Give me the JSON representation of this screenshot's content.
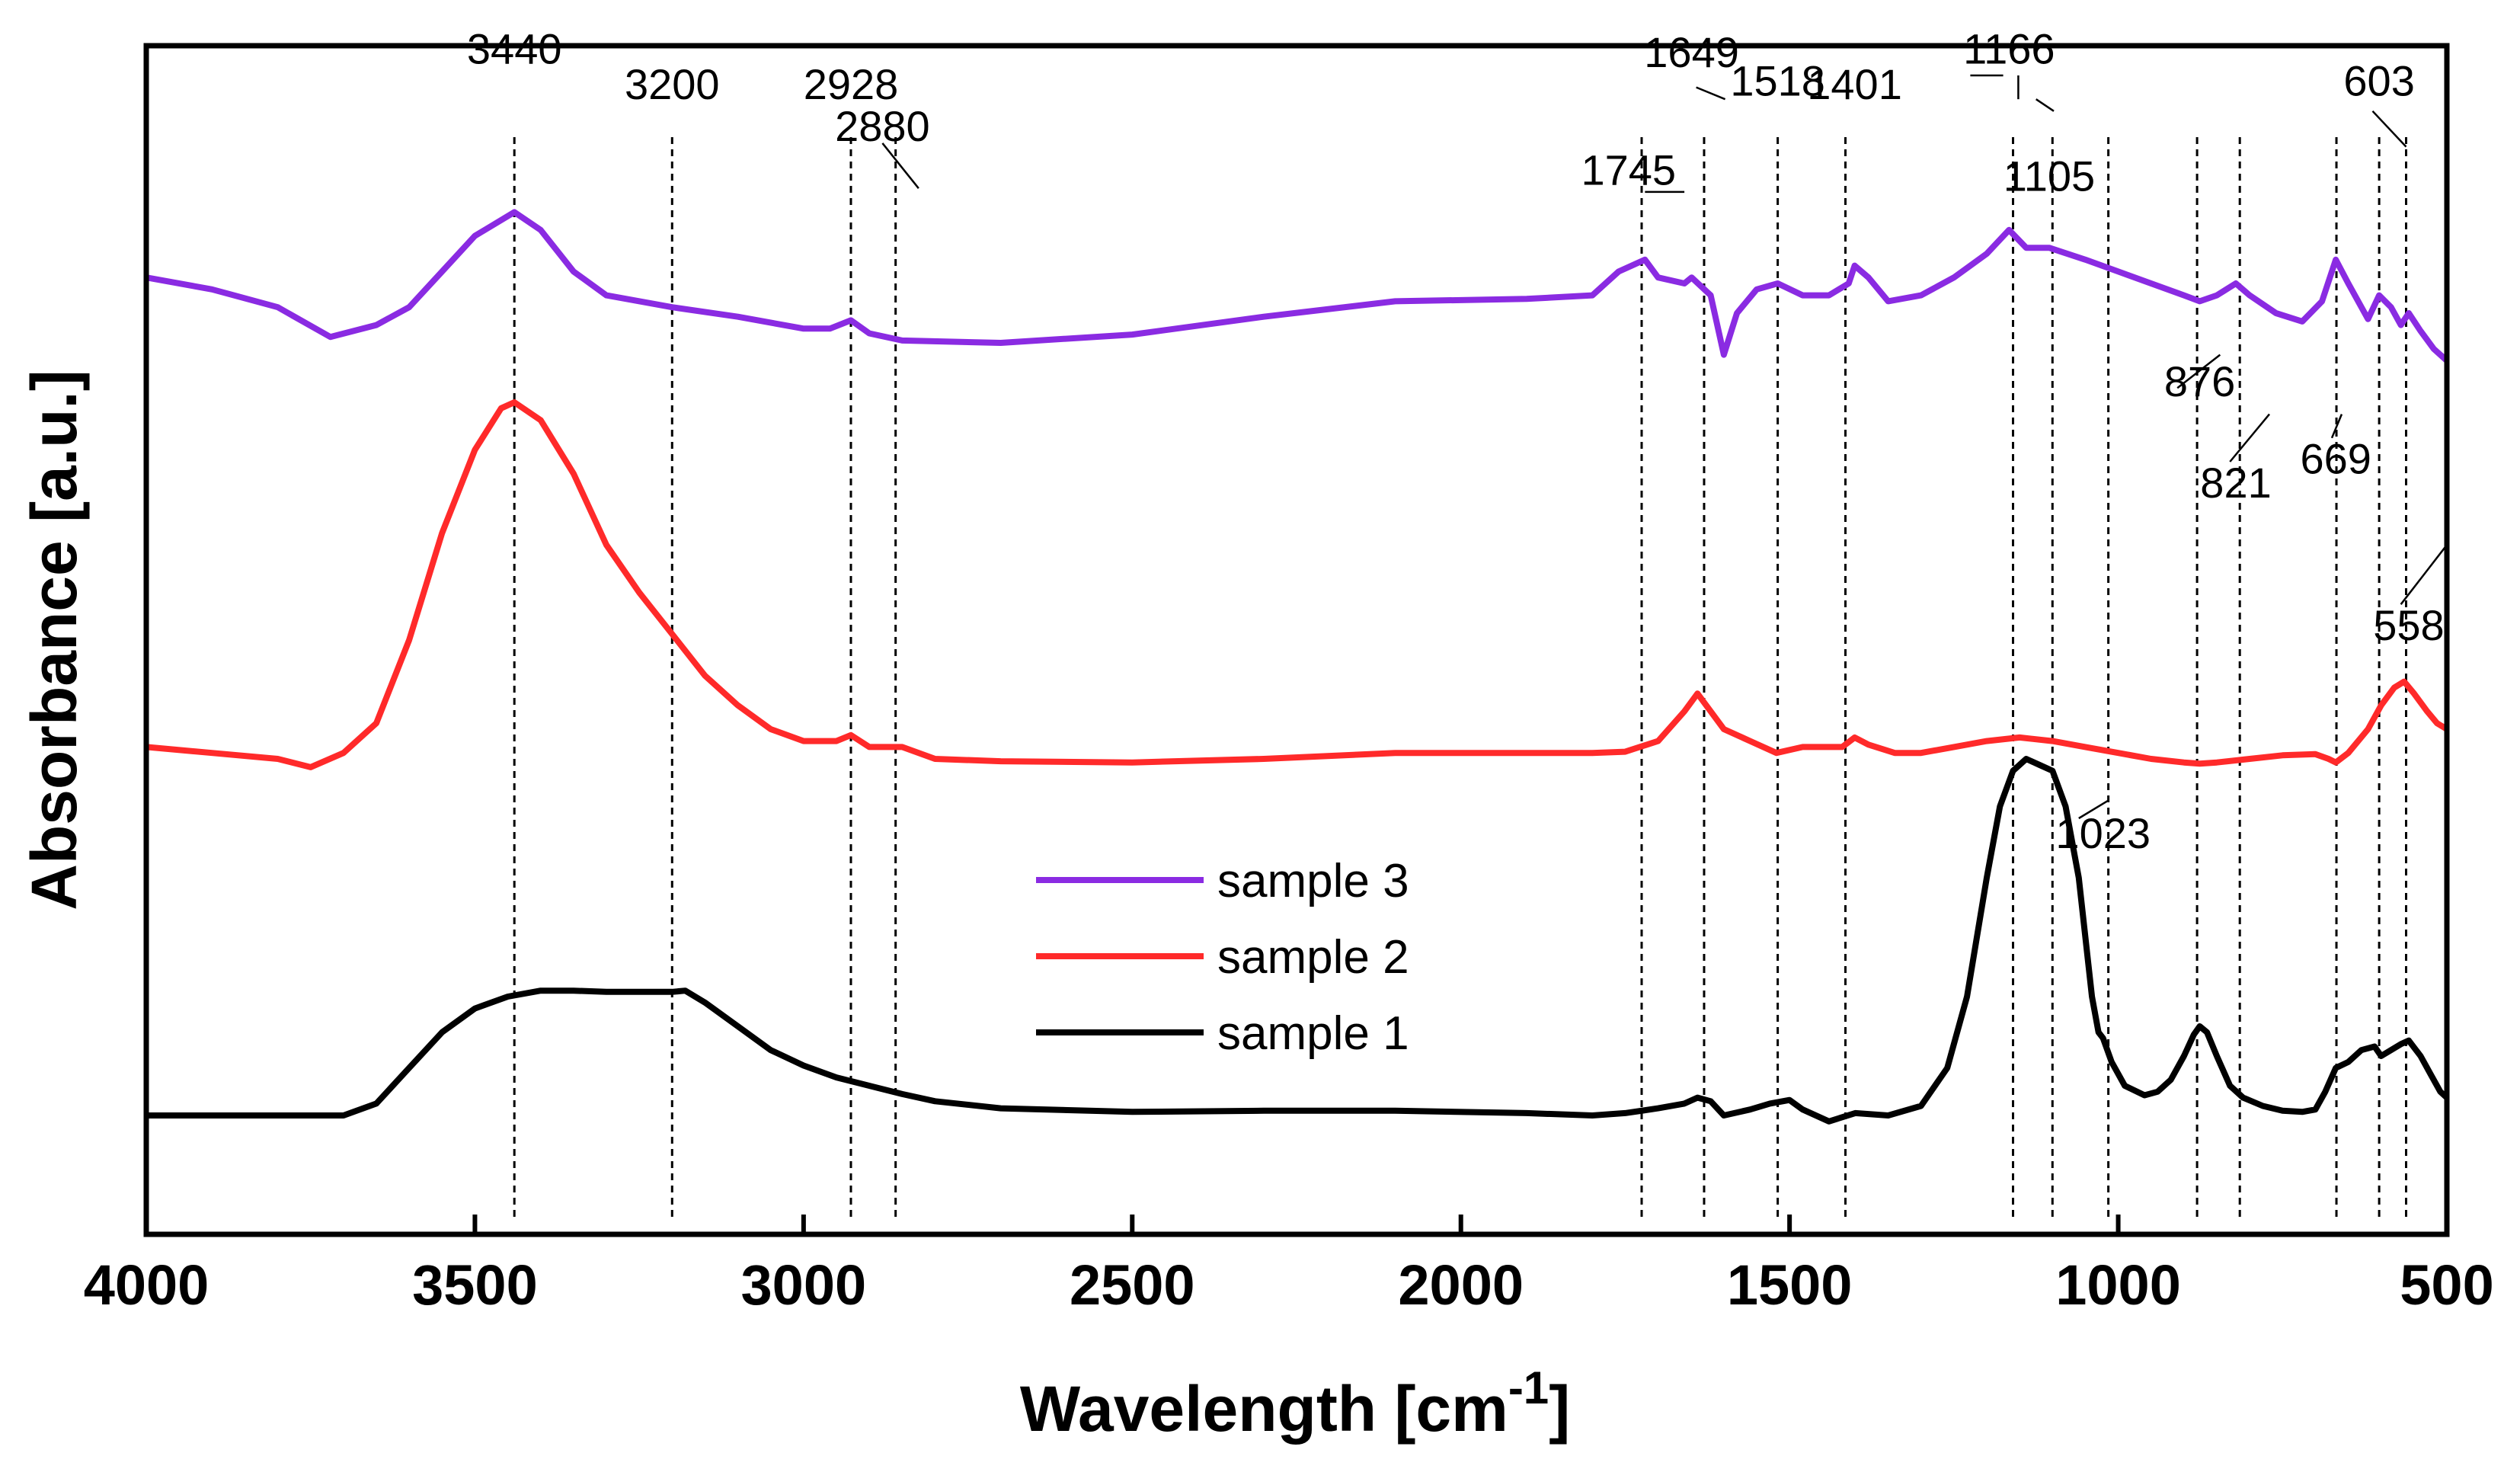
{
  "chart_data": {
    "type": "line",
    "title": "",
    "xlabel": "Wavelength [cm",
    "xlabel_sup": "-1",
    "xlabel_suffix": "]",
    "ylabel": "Absorbance [a.u.]",
    "xlim": [
      4000,
      500
    ],
    "ylim": [
      0,
      1
    ],
    "grid": false,
    "legend_position": "center",
    "x_ticks": [
      {
        "value": 4000,
        "label": "4000"
      },
      {
        "value": 3500,
        "label": "3500"
      },
      {
        "value": 3000,
        "label": "3000"
      },
      {
        "value": 2500,
        "label": "2500"
      },
      {
        "value": 2000,
        "label": "2000"
      },
      {
        "value": 1500,
        "label": "1500"
      },
      {
        "value": 1000,
        "label": "1000"
      },
      {
        "value": 500,
        "label": "500"
      }
    ],
    "series": [
      {
        "name": "sample 3",
        "color": "#8a2be2",
        "points": [
          [
            4000,
            0.805
          ],
          [
            3900,
            0.795
          ],
          [
            3800,
            0.78
          ],
          [
            3720,
            0.755
          ],
          [
            3650,
            0.765
          ],
          [
            3600,
            0.78
          ],
          [
            3550,
            0.81
          ],
          [
            3500,
            0.84
          ],
          [
            3440,
            0.86
          ],
          [
            3400,
            0.845
          ],
          [
            3350,
            0.81
          ],
          [
            3300,
            0.79
          ],
          [
            3200,
            0.78
          ],
          [
            3100,
            0.772
          ],
          [
            3000,
            0.762
          ],
          [
            2960,
            0.762
          ],
          [
            2928,
            0.769
          ],
          [
            2900,
            0.758
          ],
          [
            2850,
            0.752
          ],
          [
            2700,
            0.75
          ],
          [
            2500,
            0.757
          ],
          [
            2300,
            0.772
          ],
          [
            2100,
            0.785
          ],
          [
            1900,
            0.787
          ],
          [
            1800,
            0.79
          ],
          [
            1760,
            0.81
          ],
          [
            1720,
            0.82
          ],
          [
            1700,
            0.805
          ],
          [
            1660,
            0.8
          ],
          [
            1649,
            0.805
          ],
          [
            1620,
            0.79
          ],
          [
            1600,
            0.74
          ],
          [
            1580,
            0.775
          ],
          [
            1550,
            0.795
          ],
          [
            1518,
            0.8
          ],
          [
            1480,
            0.79
          ],
          [
            1440,
            0.79
          ],
          [
            1410,
            0.8
          ],
          [
            1401,
            0.815
          ],
          [
            1380,
            0.805
          ],
          [
            1350,
            0.785
          ],
          [
            1300,
            0.79
          ],
          [
            1250,
            0.805
          ],
          [
            1200,
            0.825
          ],
          [
            1166,
            0.845
          ],
          [
            1140,
            0.83
          ],
          [
            1105,
            0.83
          ],
          [
            1050,
            0.82
          ],
          [
            1000,
            0.81
          ],
          [
            950,
            0.8
          ],
          [
            900,
            0.79
          ],
          [
            876,
            0.785
          ],
          [
            850,
            0.79
          ],
          [
            821,
            0.8
          ],
          [
            800,
            0.79
          ],
          [
            760,
            0.775
          ],
          [
            720,
            0.768
          ],
          [
            690,
            0.785
          ],
          [
            669,
            0.82
          ],
          [
            650,
            0.8
          ],
          [
            620,
            0.77
          ],
          [
            603,
            0.79
          ],
          [
            585,
            0.78
          ],
          [
            570,
            0.765
          ],
          [
            558,
            0.775
          ],
          [
            540,
            0.76
          ],
          [
            520,
            0.745
          ],
          [
            500,
            0.735
          ]
        ]
      },
      {
        "name": "sample 2",
        "color": "#ff2a2a",
        "points": [
          [
            4000,
            0.41
          ],
          [
            3900,
            0.405
          ],
          [
            3800,
            0.4
          ],
          [
            3750,
            0.393
          ],
          [
            3700,
            0.405
          ],
          [
            3650,
            0.43
          ],
          [
            3600,
            0.5
          ],
          [
            3550,
            0.59
          ],
          [
            3500,
            0.66
          ],
          [
            3460,
            0.695
          ],
          [
            3440,
            0.7
          ],
          [
            3400,
            0.685
          ],
          [
            3350,
            0.64
          ],
          [
            3300,
            0.58
          ],
          [
            3250,
            0.54
          ],
          [
            3200,
            0.505
          ],
          [
            3150,
            0.47
          ],
          [
            3100,
            0.445
          ],
          [
            3050,
            0.425
          ],
          [
            3000,
            0.415
          ],
          [
            2950,
            0.415
          ],
          [
            2928,
            0.42
          ],
          [
            2900,
            0.41
          ],
          [
            2850,
            0.41
          ],
          [
            2800,
            0.4
          ],
          [
            2700,
            0.398
          ],
          [
            2500,
            0.397
          ],
          [
            2300,
            0.4
          ],
          [
            2100,
            0.405
          ],
          [
            1900,
            0.405
          ],
          [
            1800,
            0.405
          ],
          [
            1750,
            0.406
          ],
          [
            1700,
            0.415
          ],
          [
            1660,
            0.44
          ],
          [
            1640,
            0.455
          ],
          [
            1620,
            0.44
          ],
          [
            1600,
            0.425
          ],
          [
            1560,
            0.415
          ],
          [
            1520,
            0.405
          ],
          [
            1480,
            0.41
          ],
          [
            1420,
            0.41
          ],
          [
            1401,
            0.418
          ],
          [
            1380,
            0.412
          ],
          [
            1340,
            0.405
          ],
          [
            1300,
            0.405
          ],
          [
            1250,
            0.41
          ],
          [
            1200,
            0.415
          ],
          [
            1150,
            0.418
          ],
          [
            1100,
            0.415
          ],
          [
            1050,
            0.41
          ],
          [
            1000,
            0.405
          ],
          [
            950,
            0.4
          ],
          [
            900,
            0.397
          ],
          [
            876,
            0.396
          ],
          [
            850,
            0.397
          ],
          [
            800,
            0.4
          ],
          [
            750,
            0.403
          ],
          [
            700,
            0.404
          ],
          [
            680,
            0.4
          ],
          [
            669,
            0.397
          ],
          [
            650,
            0.405
          ],
          [
            620,
            0.425
          ],
          [
            600,
            0.445
          ],
          [
            580,
            0.46
          ],
          [
            565,
            0.465
          ],
          [
            550,
            0.455
          ],
          [
            530,
            0.44
          ],
          [
            515,
            0.43
          ],
          [
            500,
            0.425
          ]
        ]
      },
      {
        "name": "sample 1",
        "color": "#000000",
        "points": [
          [
            4000,
            0.1
          ],
          [
            3900,
            0.1
          ],
          [
            3800,
            0.1
          ],
          [
            3700,
            0.1
          ],
          [
            3650,
            0.11
          ],
          [
            3600,
            0.14
          ],
          [
            3550,
            0.17
          ],
          [
            3500,
            0.19
          ],
          [
            3450,
            0.2
          ],
          [
            3400,
            0.205
          ],
          [
            3350,
            0.205
          ],
          [
            3300,
            0.204
          ],
          [
            3250,
            0.204
          ],
          [
            3200,
            0.204
          ],
          [
            3180,
            0.205
          ],
          [
            3150,
            0.195
          ],
          [
            3100,
            0.175
          ],
          [
            3050,
            0.155
          ],
          [
            3000,
            0.142
          ],
          [
            2950,
            0.132
          ],
          [
            2900,
            0.125
          ],
          [
            2850,
            0.118
          ],
          [
            2800,
            0.112
          ],
          [
            2700,
            0.106
          ],
          [
            2500,
            0.103
          ],
          [
            2300,
            0.104
          ],
          [
            2100,
            0.104
          ],
          [
            1900,
            0.102
          ],
          [
            1800,
            0.1
          ],
          [
            1750,
            0.102
          ],
          [
            1700,
            0.106
          ],
          [
            1660,
            0.11
          ],
          [
            1640,
            0.115
          ],
          [
            1620,
            0.112
          ],
          [
            1600,
            0.1
          ],
          [
            1560,
            0.105
          ],
          [
            1530,
            0.11
          ],
          [
            1500,
            0.113
          ],
          [
            1480,
            0.105
          ],
          [
            1440,
            0.095
          ],
          [
            1400,
            0.102
          ],
          [
            1350,
            0.1
          ],
          [
            1300,
            0.108
          ],
          [
            1260,
            0.14
          ],
          [
            1230,
            0.2
          ],
          [
            1200,
            0.3
          ],
          [
            1180,
            0.36
          ],
          [
            1160,
            0.39
          ],
          [
            1140,
            0.4
          ],
          [
            1120,
            0.395
          ],
          [
            1100,
            0.39
          ],
          [
            1080,
            0.36
          ],
          [
            1060,
            0.3
          ],
          [
            1040,
            0.2
          ],
          [
            1030,
            0.17
          ],
          [
            1023,
            0.165
          ],
          [
            1010,
            0.145
          ],
          [
            990,
            0.125
          ],
          [
            960,
            0.117
          ],
          [
            940,
            0.12
          ],
          [
            920,
            0.13
          ],
          [
            900,
            0.15
          ],
          [
            885,
            0.168
          ],
          [
            876,
            0.175
          ],
          [
            865,
            0.17
          ],
          [
            850,
            0.15
          ],
          [
            830,
            0.125
          ],
          [
            810,
            0.115
          ],
          [
            780,
            0.108
          ],
          [
            750,
            0.104
          ],
          [
            720,
            0.103
          ],
          [
            700,
            0.105
          ],
          [
            685,
            0.12
          ],
          [
            669,
            0.14
          ],
          [
            650,
            0.145
          ],
          [
            630,
            0.155
          ],
          [
            610,
            0.158
          ],
          [
            600,
            0.15
          ],
          [
            585,
            0.155
          ],
          [
            570,
            0.16
          ],
          [
            558,
            0.163
          ],
          [
            540,
            0.15
          ],
          [
            525,
            0.135
          ],
          [
            510,
            0.12
          ],
          [
            500,
            0.115
          ]
        ]
      }
    ],
    "legend": [
      {
        "label": "sample 3",
        "color": "#8a2be2"
      },
      {
        "label": "sample 2",
        "color": "#ff2a2a"
      },
      {
        "label": "sample 1",
        "color": "#000000"
      }
    ],
    "reference_lines": [
      3440,
      3200,
      2928,
      2860,
      1725,
      1630,
      1518,
      1415,
      1160,
      1100,
      1015,
      880,
      815,
      668,
      603,
      562
    ],
    "annotations": [
      {
        "text": "3440",
        "x": 3440,
        "y": 0.985
      },
      {
        "text": "3200",
        "x": 3200,
        "y": 0.955
      },
      {
        "text": "2928",
        "x": 2928,
        "y": 0.955
      },
      {
        "text": "2880",
        "x": 2880,
        "y": 0.92
      },
      {
        "text": "1745",
        "x": 1745,
        "y": 0.883
      },
      {
        "text": "1649",
        "x": 1649,
        "y": 0.982
      },
      {
        "text": "1518",
        "x": 1518,
        "y": 0.958
      },
      {
        "text": "1401",
        "x": 1401,
        "y": 0.955
      },
      {
        "text": "1166",
        "x": 1166,
        "y": 0.985
      },
      {
        "text": "1105",
        "x": 1105,
        "y": 0.878
      },
      {
        "text": "603",
        "x": 603,
        "y": 0.958
      },
      {
        "text": "876",
        "x": 876,
        "y": 0.705
      },
      {
        "text": "821",
        "x": 821,
        "y": 0.62
      },
      {
        "text": "669",
        "x": 669,
        "y": 0.64
      },
      {
        "text": "558",
        "x": 558,
        "y": 0.5
      },
      {
        "text": "1023",
        "x": 1023,
        "y": 0.325
      }
    ]
  }
}
